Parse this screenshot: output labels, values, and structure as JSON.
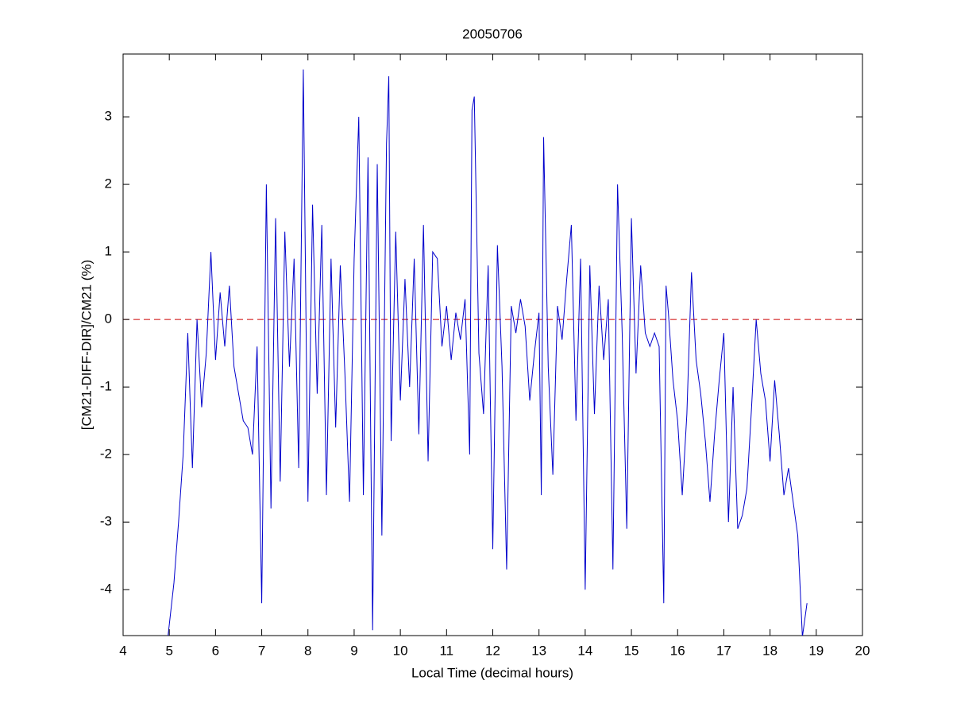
{
  "chart_data": {
    "type": "line",
    "title": "20050706",
    "x_label": "Local Time (decimal hours)",
    "y_label": "[CM21-DIFF-DIR]/CM21 (%)",
    "xlim": [
      4,
      20
    ],
    "ylim": [
      -4.68,
      3.93
    ],
    "xticks": [
      4,
      5,
      6,
      7,
      8,
      9,
      10,
      11,
      12,
      13,
      14,
      15,
      16,
      17,
      18,
      19,
      20
    ],
    "yticks": [
      -4,
      -3,
      -2,
      -1,
      0,
      1,
      2,
      3
    ],
    "reference_line": {
      "value": 0,
      "color": "#cc0000",
      "dashed": true
    },
    "x": [
      4.97,
      5.1,
      5.2,
      5.3,
      5.4,
      5.5,
      5.6,
      5.7,
      5.8,
      5.9,
      6.0,
      6.1,
      6.2,
      6.3,
      6.4,
      6.5,
      6.6,
      6.7,
      6.8,
      6.9,
      7.0,
      7.1,
      7.2,
      7.3,
      7.4,
      7.5,
      7.6,
      7.7,
      7.8,
      7.9,
      8.0,
      8.1,
      8.2,
      8.3,
      8.4,
      8.5,
      8.6,
      8.7,
      8.8,
      8.9,
      9.0,
      9.1,
      9.2,
      9.3,
      9.4,
      9.5,
      9.6,
      9.7,
      9.75,
      9.8,
      9.9,
      10.0,
      10.1,
      10.2,
      10.3,
      10.4,
      10.5,
      10.6,
      10.7,
      10.8,
      10.9,
      11.0,
      11.1,
      11.2,
      11.3,
      11.4,
      11.5,
      11.55,
      11.6,
      11.7,
      11.8,
      11.9,
      12.0,
      12.1,
      12.2,
      12.3,
      12.4,
      12.5,
      12.6,
      12.7,
      12.8,
      12.9,
      13.0,
      13.05,
      13.1,
      13.2,
      13.3,
      13.4,
      13.5,
      13.6,
      13.7,
      13.8,
      13.9,
      14.0,
      14.1,
      14.2,
      14.3,
      14.4,
      14.5,
      14.6,
      14.7,
      14.8,
      14.9,
      15.0,
      15.1,
      15.2,
      15.3,
      15.4,
      15.5,
      15.6,
      15.7,
      15.75,
      15.8,
      15.9,
      16.0,
      16.1,
      16.2,
      16.3,
      16.4,
      16.5,
      16.6,
      16.7,
      16.8,
      16.9,
      17.0,
      17.1,
      17.2,
      17.3,
      17.4,
      17.5,
      17.6,
      17.7,
      17.8,
      17.9,
      18.0,
      18.1,
      18.2,
      18.3,
      18.4,
      18.5,
      18.6,
      18.7,
      18.8
    ],
    "series": [
      {
        "color": "#0000cc",
        "values": [
          -4.7,
          -3.9,
          -3.0,
          -2.0,
          -0.2,
          -2.2,
          0.0,
          -1.3,
          -0.5,
          1.0,
          -0.6,
          0.4,
          -0.4,
          0.5,
          -0.7,
          -1.1,
          -1.5,
          -1.6,
          -2.0,
          -0.4,
          -4.2,
          2.0,
          -2.8,
          1.5,
          -2.4,
          1.3,
          -0.7,
          0.9,
          -2.2,
          3.7,
          -2.7,
          1.7,
          -1.1,
          1.4,
          -2.6,
          0.9,
          -1.6,
          0.8,
          -0.8,
          -2.7,
          0.9,
          3.0,
          -2.6,
          2.4,
          -4.6,
          2.3,
          -3.2,
          2.6,
          3.6,
          -1.8,
          1.3,
          -1.2,
          0.6,
          -1.0,
          0.9,
          -1.7,
          1.4,
          -2.1,
          1.0,
          0.9,
          -0.4,
          0.2,
          -0.6,
          0.1,
          -0.3,
          0.3,
          -2.0,
          3.1,
          3.3,
          -0.5,
          -1.4,
          0.8,
          -3.4,
          1.1,
          -0.7,
          -3.7,
          0.2,
          -0.2,
          0.3,
          -0.1,
          -1.2,
          -0.5,
          0.1,
          -2.6,
          2.7,
          -0.7,
          -2.3,
          0.2,
          -0.3,
          0.6,
          1.4,
          -1.5,
          0.9,
          -4.0,
          0.8,
          -1.4,
          0.5,
          -0.6,
          0.3,
          -3.7,
          2.0,
          -0.2,
          -3.1,
          1.5,
          -0.8,
          0.8,
          -0.2,
          -0.4,
          -0.2,
          -0.4,
          -4.2,
          0.5,
          0.1,
          -0.9,
          -1.5,
          -2.6,
          -1.4,
          0.7,
          -0.6,
          -1.1,
          -1.8,
          -2.7,
          -1.7,
          -0.9,
          -0.2,
          -3.0,
          -1.0,
          -3.1,
          -2.9,
          -2.5,
          -1.3,
          0.0,
          -0.8,
          -1.2,
          -2.1,
          -0.9,
          -1.7,
          -2.6,
          -2.2,
          -2.7,
          -3.2,
          -4.7,
          -4.2
        ]
      }
    ]
  }
}
